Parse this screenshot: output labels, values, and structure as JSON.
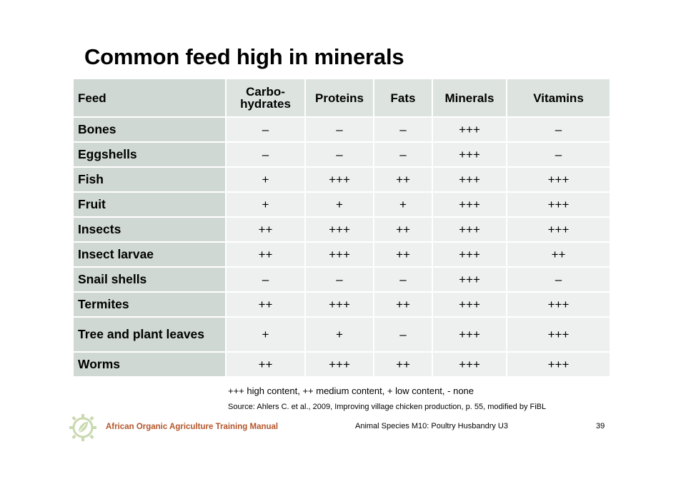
{
  "title": "Common feed high in minerals",
  "table": {
    "headers": [
      "Feed",
      "Carbo-\nhydrates",
      "Proteins",
      "Fats",
      "Minerals",
      "Vitamins"
    ],
    "rows": [
      [
        "Bones",
        "–",
        "–",
        "–",
        "+++",
        "–"
      ],
      [
        "Eggshells",
        "–",
        "–",
        "–",
        "+++",
        "–"
      ],
      [
        "Fish",
        "+",
        "+++",
        "++",
        "+++",
        "+++"
      ],
      [
        "Fruit",
        "+",
        "+",
        "+",
        "+++",
        "+++"
      ],
      [
        "Insects",
        "++",
        "+++",
        "++",
        "+++",
        "+++"
      ],
      [
        "Insect larvae",
        "++",
        "+++",
        "++",
        "+++",
        "++"
      ],
      [
        "Snail shells",
        "–",
        "–",
        "–",
        "+++",
        "–"
      ],
      [
        "Termites",
        "++",
        "+++",
        "++",
        "+++",
        "+++"
      ],
      [
        "Tree and plant leaves",
        "+",
        "+",
        "–",
        "+++",
        "+++"
      ],
      [
        "Worms",
        "++",
        "+++",
        "++",
        "+++",
        "+++"
      ]
    ]
  },
  "legend": "+++ high content, ++ medium content, + low content, - none",
  "source": "Source: Ahlers C. et al., 2009, Improving village chicken production, p. 55, modified by FiBL",
  "footer": {
    "manual": "African Organic Agriculture Training Manual",
    "module": "Animal Species M10: Poultry Husbandry U3",
    "page": "39"
  },
  "colors": {
    "header_bg": "#dde4e0",
    "first_col_bg": "#cfd8d3",
    "cell_bg": "#edf0ee",
    "manual_text": "#b4552a",
    "logo": "#c9d9b0"
  },
  "icons": {
    "logo": "leaf-logo-icon"
  }
}
